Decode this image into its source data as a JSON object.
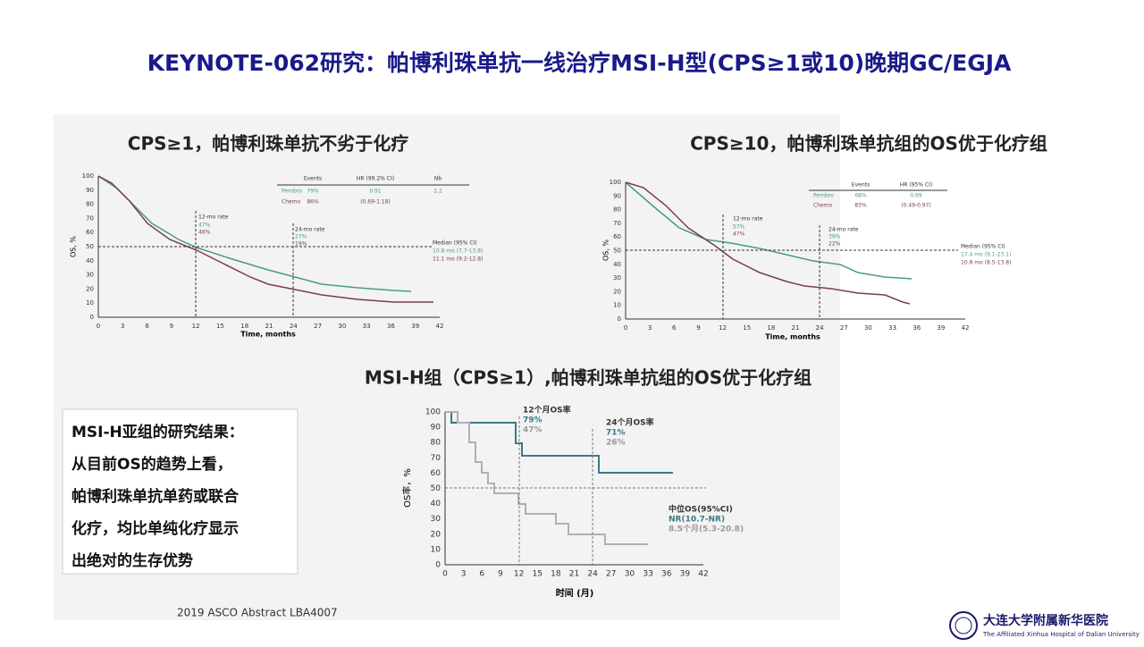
{
  "title": "KEYNOTE-062研究：帕博利珠单抗一线治疗MSI-H型(CPS≥1或10)晚期GC/EGJA",
  "panels": [
    {
      "heading": "CPS≥1，帕博利珠单抗不劣于化疗",
      "y_label": "OS, %",
      "x_label": "Time, months",
      "yticks": [
        0,
        10,
        20,
        30,
        40,
        50,
        60,
        70,
        80,
        90,
        100
      ],
      "xticks": [
        0,
        3,
        6,
        9,
        12,
        15,
        18,
        21,
        24,
        27,
        30,
        33,
        36,
        39,
        42
      ],
      "legend": {
        "header": [
          "Events",
          "HR (99.2% CI)",
          "Nb"
        ],
        "rows": [
          [
            "Pembro",
            "79%",
            "0.91",
            "1.2"
          ],
          [
            "Chemo",
            "86%",
            "(0.69-1.18)"
          ]
        ]
      },
      "annotations": [
        "12-mo rate",
        "47%",
        "46%",
        "24-mo rate",
        "27%",
        "19%",
        "Median (95% CI)",
        "10.8 mo (7.7-13.8)",
        "11.1 mo (9.2-12.8)"
      ]
    },
    {
      "heading": "CPS≥10，帕博利珠单抗组的OS优于化疗组",
      "y_label": "OS, %",
      "x_label": "Time, months",
      "yticks": [
        0,
        10,
        20,
        30,
        40,
        50,
        60,
        70,
        80,
        90,
        100
      ],
      "xticks": [
        0,
        3,
        6,
        9,
        12,
        15,
        18,
        21,
        24,
        27,
        30,
        33,
        36,
        39,
        42
      ],
      "legend": {
        "header": [
          "Events",
          "HR (95% CI)"
        ],
        "rows": [
          [
            "Pembro",
            "68%",
            "0.69"
          ],
          [
            "Chemo",
            "83%",
            "(0.49-0.97)"
          ]
        ]
      },
      "annotations": [
        "12-mo rate",
        "57%",
        "47%",
        "24-mo rate",
        "39%",
        "22%",
        "Median (95% CI)",
        "17.4 mo (9.1-23.1)",
        "10.8 mo (8.5-13.8)"
      ]
    },
    {
      "heading": "MSI-H组（CPS≥1）,帕博利珠单抗组的OS优于化疗组",
      "y_label": "OS率，%",
      "x_label": "时间 (月)",
      "yticks": [
        0,
        10,
        20,
        30,
        40,
        50,
        60,
        70,
        80,
        90,
        100
      ],
      "xticks": [
        0,
        3,
        6,
        9,
        12,
        15,
        18,
        21,
        24,
        27,
        30,
        33,
        36,
        39,
        42
      ],
      "annotations": [
        "12个月OS率",
        "79%",
        "47%",
        "24个月OS率",
        "71%",
        "26%",
        "中位OS(95%CI)",
        "NR(10.7-NR)",
        "8.5个月(5.3-20.8)"
      ]
    }
  ],
  "textbox": {
    "lines": [
      "MSI-H亚组的研究结果：",
      "从目前OS的趋势上看，",
      "帕博利珠单抗单药或联合",
      "化疗，均比单纯化疗显示",
      "出绝对的生存优势"
    ]
  },
  "footer": "2019 ASCO  Abstract LBA4007",
  "logo": {
    "name": "大连大学附属新华医院",
    "english": "The Affiliated Xinhua Hospital of Dalian University"
  }
}
